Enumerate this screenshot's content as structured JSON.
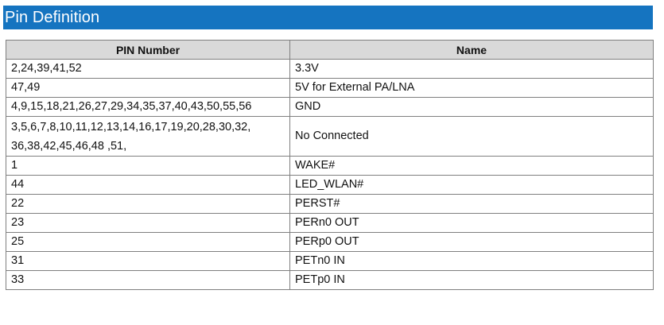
{
  "section_title": "Pin Definition",
  "table": {
    "headers": [
      "PIN Number",
      "Name"
    ],
    "rows": [
      {
        "pins": "2,24,39,41,52",
        "name": "3.3V"
      },
      {
        "pins": "47,49",
        "name": "5V for External PA/LNA"
      },
      {
        "pins": "4,9,15,18,21,26,27,29,34,35,37,40,43,50,55,56",
        "name": "GND"
      },
      {
        "pins": "3,5,6,7,8,10,11,12,13,14,16,17,19,20,28,30,32, 36,38,42,45,46,48 ,51,",
        "name": "No Connected"
      },
      {
        "pins": "1",
        "name": "WAKE#"
      },
      {
        "pins": "44",
        "name": "LED_WLAN#"
      },
      {
        "pins": "22",
        "name": "PERST#"
      },
      {
        "pins": "23",
        "name": "PERn0 OUT"
      },
      {
        "pins": "25",
        "name": "PERp0 OUT"
      },
      {
        "pins": "31",
        "name": "PETn0 IN"
      },
      {
        "pins": "33",
        "name": "PETp0 IN"
      }
    ]
  },
  "colors": {
    "title_bar": "#1574c0",
    "header_bg": "#d9d9d9",
    "border": "#7f7f7f"
  }
}
